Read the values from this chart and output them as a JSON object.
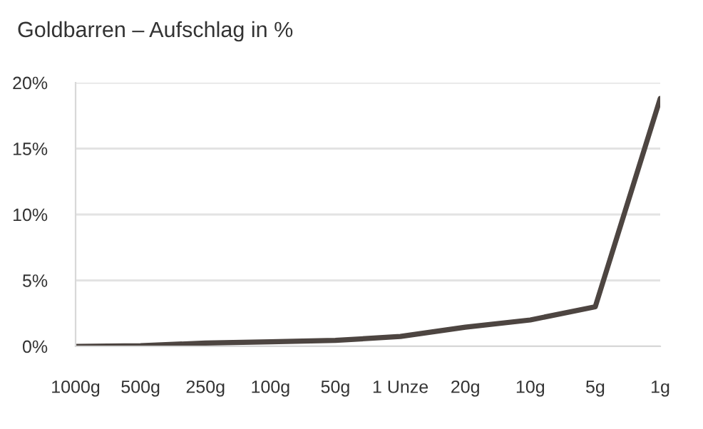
{
  "chart_data": {
    "type": "line",
    "title": "Goldbarren – Aufschlag in %",
    "categories": [
      "1000g",
      "500g",
      "250g",
      "100g",
      "50g",
      "1 Unze",
      "20g",
      "10g",
      "5g",
      "1g"
    ],
    "series": [
      {
        "color": "#4d4541",
        "values": [
          0.0,
          0.05,
          0.25,
          0.35,
          0.45,
          0.75,
          1.45,
          2.0,
          3.0,
          18.8
        ]
      }
    ],
    "ylim": [
      0,
      20
    ],
    "yticks": [
      {
        "value": 0,
        "label": "0%"
      },
      {
        "value": 5,
        "label": "5%"
      },
      {
        "value": 10,
        "label": "10%"
      },
      {
        "value": 15,
        "label": "15%"
      },
      {
        "value": 20,
        "label": "20%"
      }
    ],
    "grid": "y",
    "legend": false,
    "marker": "none",
    "line_style": "solid"
  }
}
